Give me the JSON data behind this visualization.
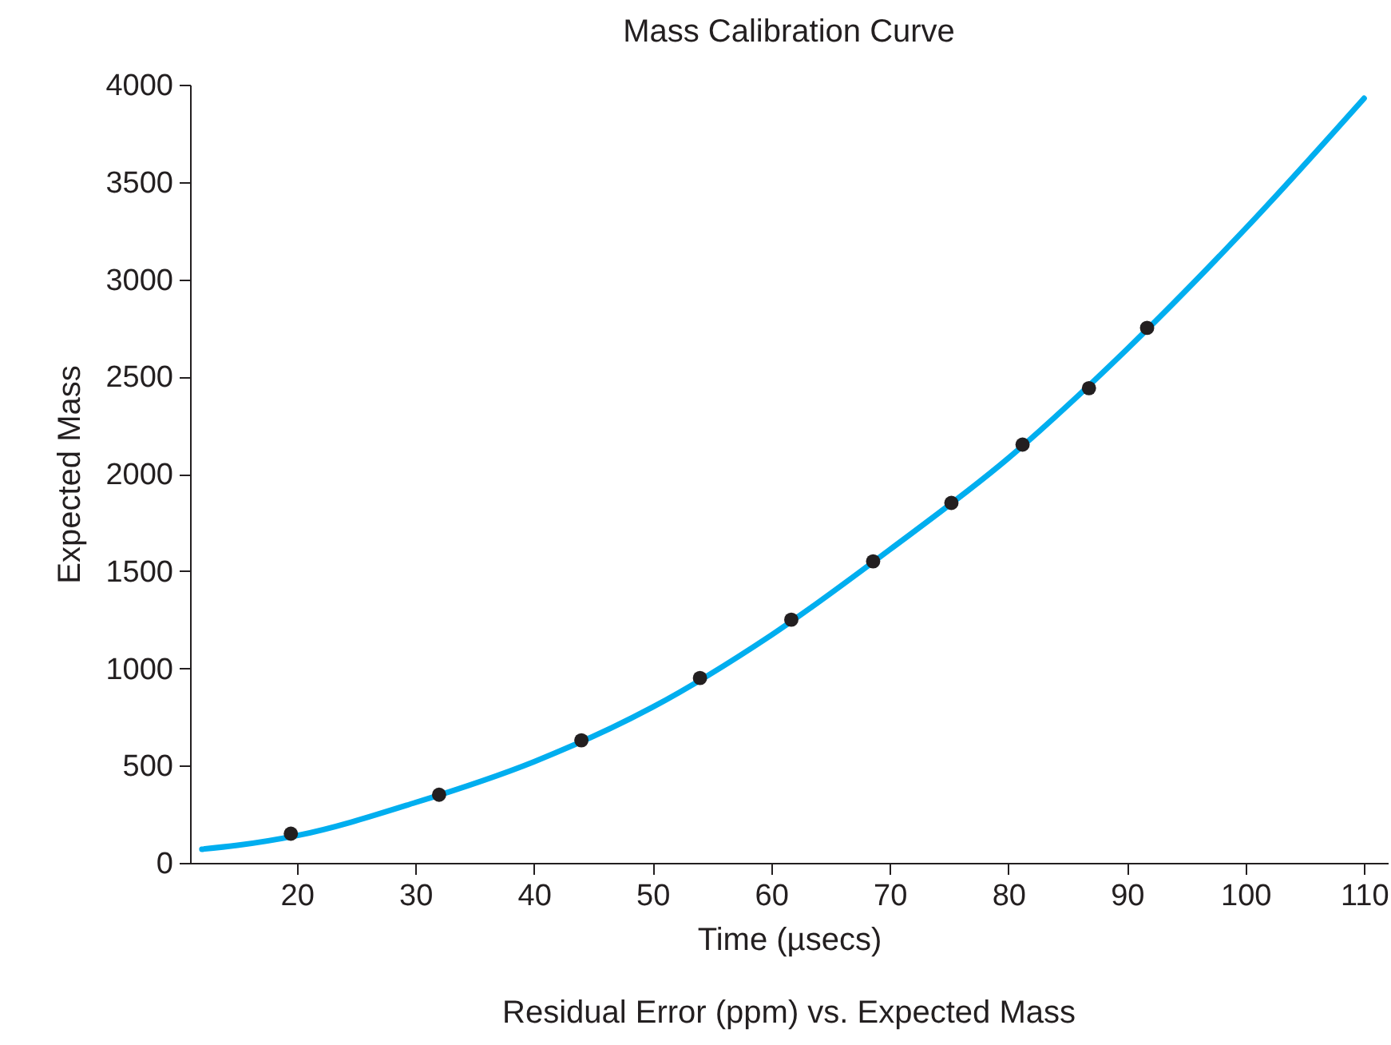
{
  "chart_data": {
    "type": "scatter",
    "title": "Mass Calibration Curve",
    "xlabel": "Time (µsecs)",
    "ylabel": "Expected Mass",
    "annotations": [
      "Residual Error (ppm) vs. Expected Mass"
    ],
    "xlim": [
      11,
      112
    ],
    "ylim": [
      0,
      4000
    ],
    "xticks": [
      20,
      30,
      40,
      50,
      60,
      70,
      80,
      90,
      100,
      110
    ],
    "yticks": [
      0,
      500,
      1000,
      1500,
      2000,
      2500,
      3000,
      3500,
      4000
    ],
    "grid": false,
    "series": [
      {
        "type": "line",
        "color": "#00aeef",
        "marker": "none",
        "line_style": "solid",
        "x": [
          12,
          15,
          20,
          30,
          40,
          50,
          60,
          70,
          80,
          90,
          100,
          110
        ],
        "values": [
          70,
          90,
          140,
          310,
          520,
          800,
          1170,
          1610,
          2080,
          2640,
          3260,
          3930
        ]
      },
      {
        "color": "#231f20",
        "marker": "circle",
        "x": [
          19.5,
          32.0,
          44.0,
          54.0,
          61.7,
          68.6,
          75.2,
          81.2,
          86.8,
          91.7
        ],
        "values": [
          150,
          350,
          630,
          950,
          1250,
          1550,
          1850,
          2150,
          2440,
          2750
        ]
      }
    ]
  }
}
